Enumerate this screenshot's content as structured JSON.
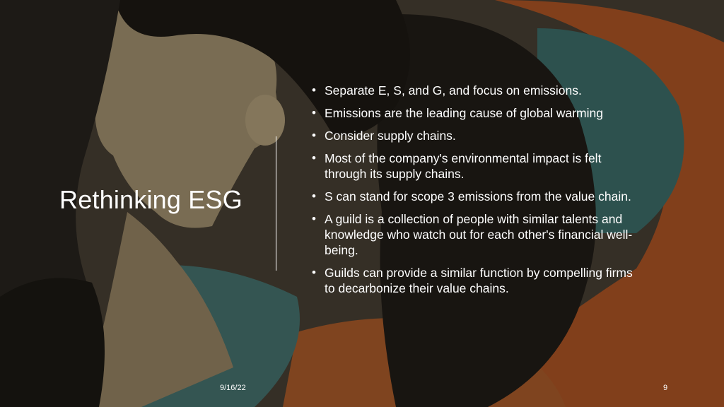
{
  "slide": {
    "title": "Rethinking ESG",
    "bullets": [
      "Separate E, S, and G, and focus on emissions.",
      "Emissions are the leading cause of global warming",
      "Consider supply chains.",
      "Most of the company's environmental impact is felt through its supply chains.",
      "S can stand for scope 3 emissions from the value chain.",
      "A guild is a collection of people with similar talents and knowledge who watch out for each other's financial well-being.",
      "Guilds can provide a similar function by compelling firms to decarbonize their value chains."
    ],
    "bullet_symbol": "•",
    "footer_date": "9/16/22",
    "page_number": "9"
  },
  "colors": {
    "text": "#ffffff",
    "background_dark": "#1f1b16",
    "accent_orange": "#c9612a",
    "accent_teal": "#3f7a78"
  }
}
